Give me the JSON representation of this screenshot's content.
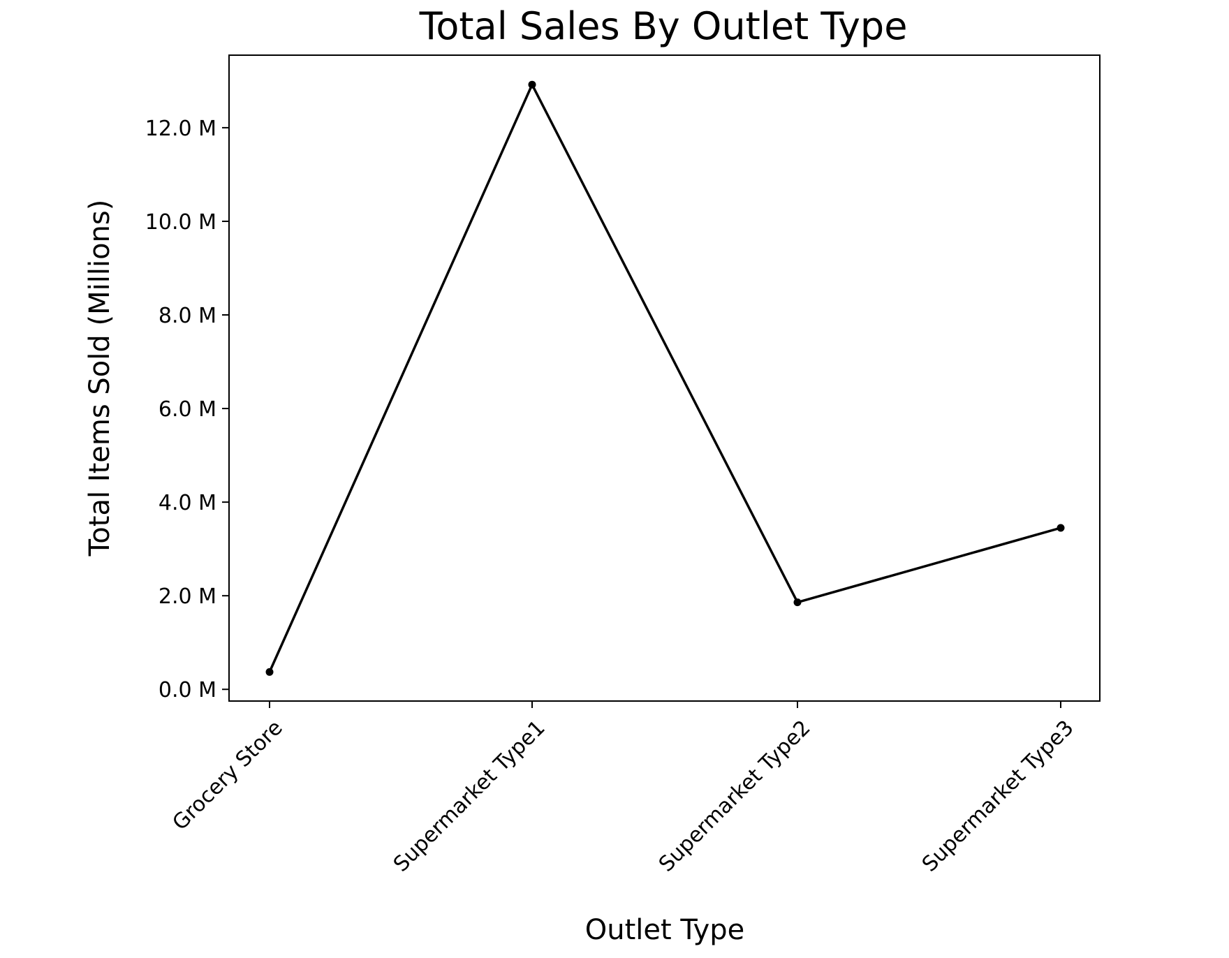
{
  "chart_data": {
    "type": "line",
    "title": "Total Sales By Outlet Type",
    "xlabel": "Outlet Type",
    "ylabel": "Total Items Sold (Millions)",
    "categories": [
      "Grocery Store",
      "Supermarket Type1",
      "Supermarket Type2",
      "Supermarket Type3"
    ],
    "series": [
      {
        "values": [
          0.37,
          12.92,
          1.86,
          3.45
        ]
      }
    ],
    "yticks": [
      0,
      2,
      4,
      6,
      8,
      10,
      12
    ],
    "ytick_labels": [
      "0.0 M",
      "2.0 M",
      "4.0 M",
      "6.0 M",
      "8.0 M",
      "10.0 M",
      "12.0 M"
    ],
    "ylim": [
      -0.25,
      13.55
    ],
    "grid": false,
    "legend": "none",
    "line_color": "#000000"
  }
}
